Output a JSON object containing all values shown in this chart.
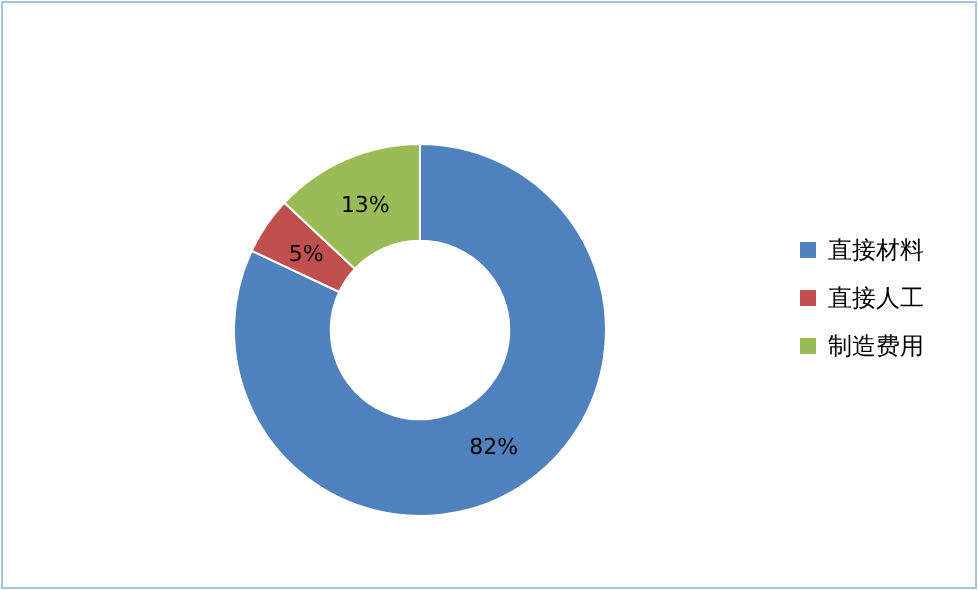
{
  "chart_data": {
    "type": "donut",
    "categories": [
      "直接材料",
      "直接人工",
      "制造费用"
    ],
    "values": [
      82,
      5,
      13
    ],
    "colors": [
      "#4f81bd",
      "#c0504d",
      "#9bbb59"
    ],
    "value_labels": [
      "82%",
      "5%",
      "13%"
    ],
    "legend": "right"
  }
}
